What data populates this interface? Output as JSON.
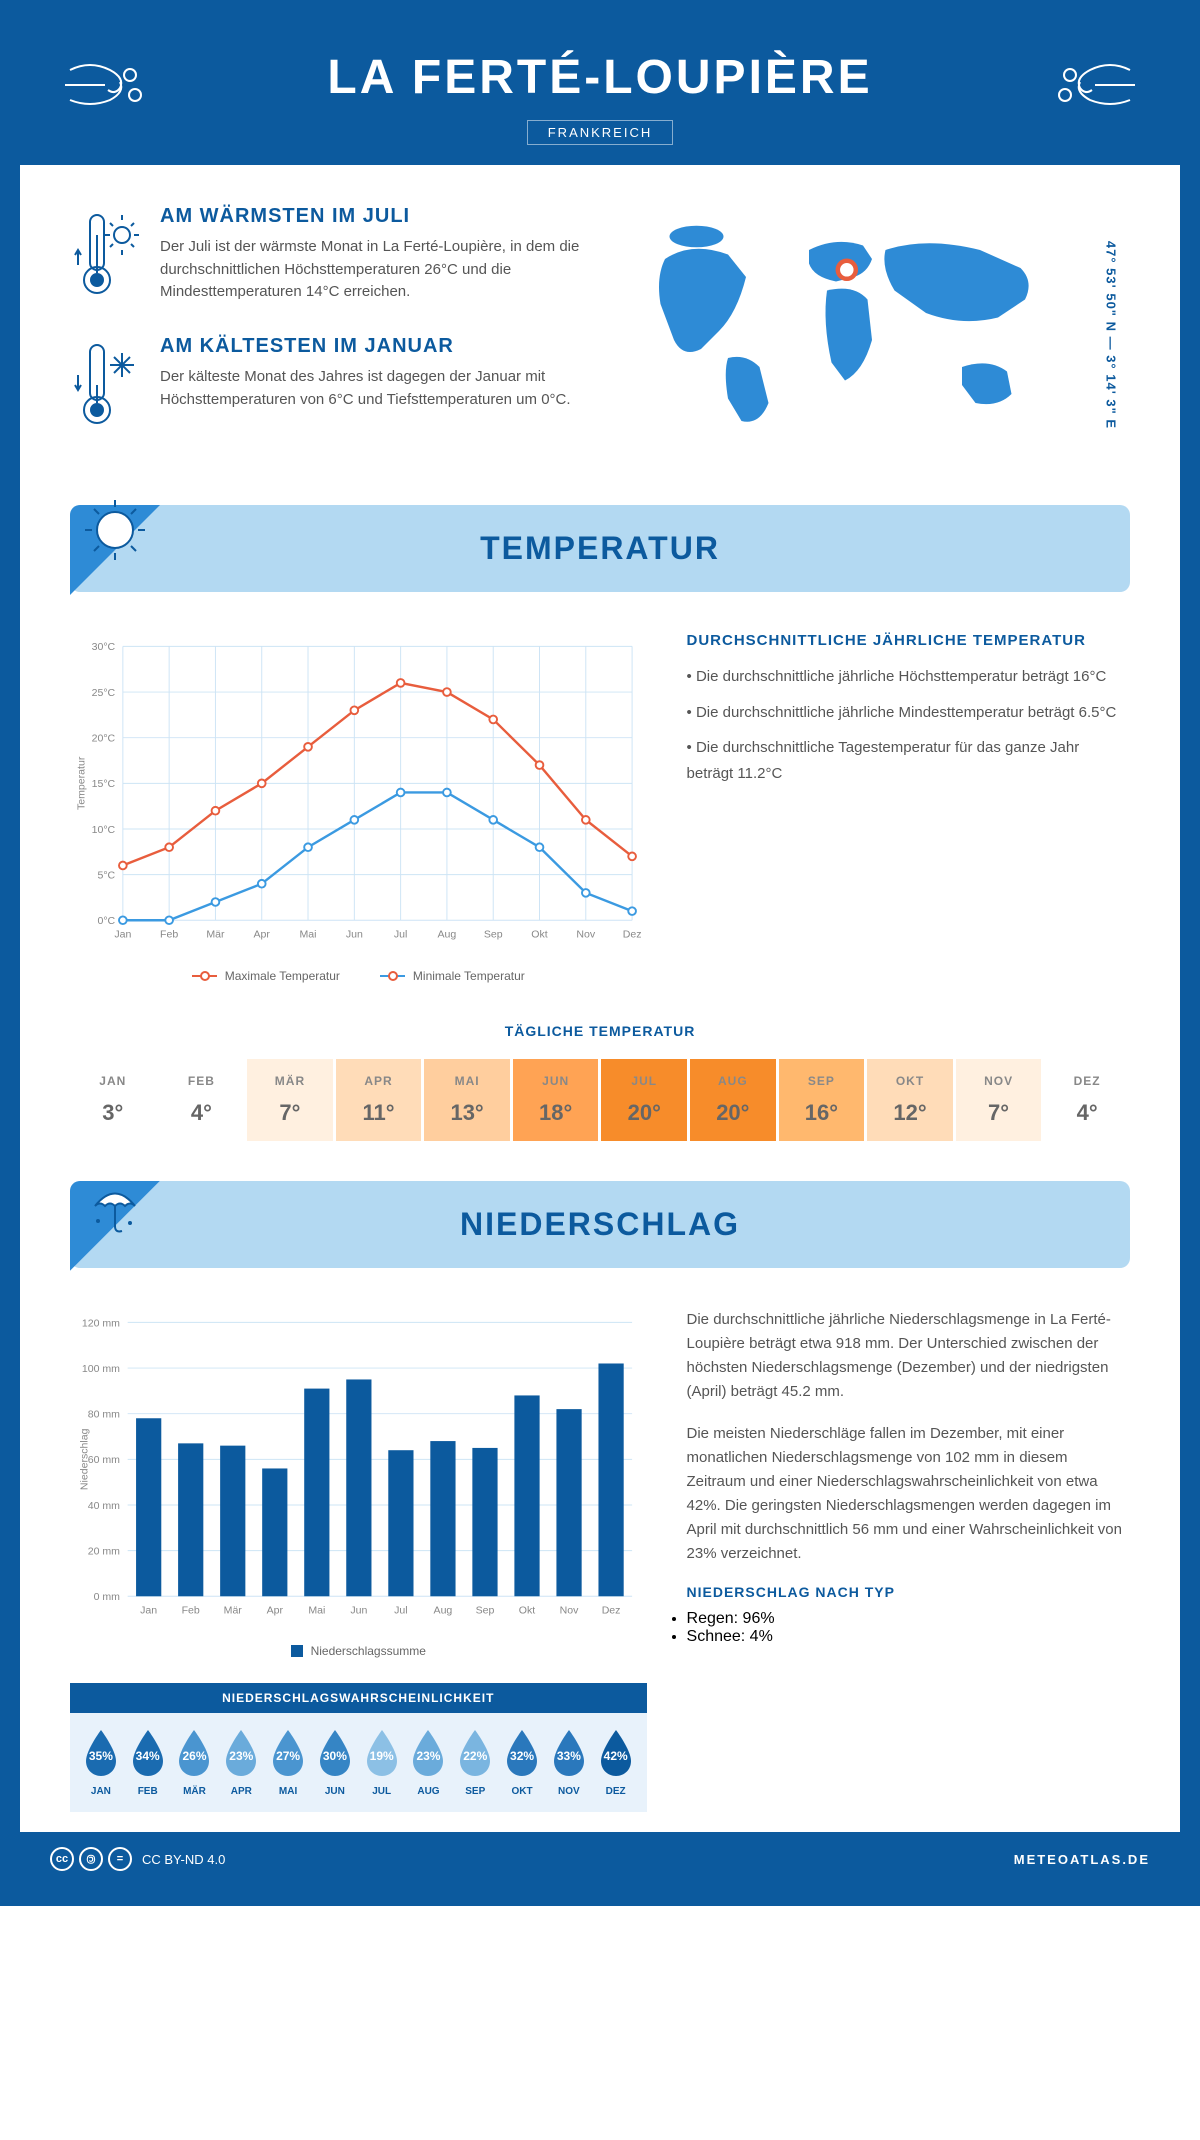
{
  "header": {
    "title": "LA FERTÉ-LOUPIÈRE",
    "country": "FRANKREICH"
  },
  "coords": "47° 53' 50\" N — 3° 14' 3\" E",
  "facts": {
    "warm": {
      "title": "AM WÄRMSTEN IM JULI",
      "text": "Der Juli ist der wärmste Monat in La Ferté-Loupière, in dem die durchschnittlichen Höchsttemperaturen 26°C und die Mindesttemperaturen 14°C erreichen."
    },
    "cold": {
      "title": "AM KÄLTESTEN IM JANUAR",
      "text": "Der kälteste Monat des Jahres ist dagegen der Januar mit Höchsttemperaturen von 6°C und Tiefsttemperaturen um 0°C."
    }
  },
  "temp_section": {
    "title": "TEMPERATUR",
    "chart": {
      "months": [
        "Jan",
        "Feb",
        "Mär",
        "Apr",
        "Mai",
        "Jun",
        "Jul",
        "Aug",
        "Sep",
        "Okt",
        "Nov",
        "Dez"
      ],
      "max": [
        6,
        8,
        12,
        15,
        19,
        23,
        26,
        25,
        22,
        17,
        11,
        7
      ],
      "min": [
        0,
        0,
        2,
        4,
        8,
        11,
        14,
        14,
        11,
        8,
        3,
        1
      ],
      "ylim": [
        0,
        30
      ],
      "ytick": 5,
      "max_color": "#e85d3d",
      "min_color": "#3b9ae1",
      "grid_color": "#cde4f5",
      "ylabel": "Temperatur",
      "legend_max": "Maximale Temperatur",
      "legend_min": "Minimale Temperatur"
    },
    "info": {
      "title": "DURCHSCHNITTLICHE JÄHRLICHE TEMPERATUR",
      "items": [
        "Die durchschnittliche jährliche Höchsttemperatur beträgt 16°C",
        "Die durchschnittliche jährliche Mindesttemperatur beträgt 6.5°C",
        "Die durchschnittliche Tagestemperatur für das ganze Jahr beträgt 11.2°C"
      ]
    },
    "daily": {
      "title": "TÄGLICHE TEMPERATUR",
      "months": [
        "JAN",
        "FEB",
        "MÄR",
        "APR",
        "MAI",
        "JUN",
        "JUL",
        "AUG",
        "SEP",
        "OKT",
        "NOV",
        "DEZ"
      ],
      "values": [
        "3°",
        "4°",
        "7°",
        "11°",
        "13°",
        "18°",
        "20°",
        "20°",
        "16°",
        "12°",
        "7°",
        "4°"
      ],
      "colors": [
        "#ffffff",
        "#ffffff",
        "#fff0e0",
        "#ffdcb8",
        "#ffce9e",
        "#ffa354",
        "#f78c2a",
        "#f78c2a",
        "#ffb86e",
        "#ffdcb8",
        "#fff0e0",
        "#ffffff"
      ]
    }
  },
  "precip_section": {
    "title": "NIEDERSCHLAG",
    "chart": {
      "months": [
        "Jan",
        "Feb",
        "Mär",
        "Apr",
        "Mai",
        "Jun",
        "Jul",
        "Aug",
        "Sep",
        "Okt",
        "Nov",
        "Dez"
      ],
      "values": [
        78,
        67,
        66,
        56,
        91,
        95,
        64,
        68,
        65,
        88,
        82,
        102
      ],
      "ylim": [
        0,
        120
      ],
      "ytick": 20,
      "bar_color": "#0c5a9e",
      "grid_color": "#cde4f5",
      "ylabel": "Niederschlag",
      "legend": "Niederschlagssumme"
    },
    "text1": "Die durchschnittliche jährliche Niederschlagsmenge in La Ferté-Loupière beträgt etwa 918 mm. Der Unterschied zwischen der höchsten Niederschlagsmenge (Dezember) und der niedrigsten (April) beträgt 45.2 mm.",
    "text2": "Die meisten Niederschläge fallen im Dezember, mit einer monatlichen Niederschlagsmenge von 102 mm in diesem Zeitraum und einer Niederschlagswahrscheinlichkeit von etwa 42%. Die geringsten Niederschlagsmengen werden dagegen im April mit durchschnittlich 56 mm und einer Wahrscheinlichkeit von 23% verzeichnet.",
    "type_title": "NIEDERSCHLAG NACH TYP",
    "types": [
      "Regen: 96%",
      "Schnee: 4%"
    ],
    "prob": {
      "title": "NIEDERSCHLAGSWAHRSCHEINLICHKEIT",
      "months": [
        "JAN",
        "FEB",
        "MÄR",
        "APR",
        "MAI",
        "JUN",
        "JUL",
        "AUG",
        "SEP",
        "OKT",
        "NOV",
        "DEZ"
      ],
      "values": [
        "35%",
        "34%",
        "26%",
        "23%",
        "27%",
        "30%",
        "19%",
        "23%",
        "22%",
        "32%",
        "33%",
        "42%"
      ],
      "colors": [
        "#1a6bb0",
        "#1a6bb0",
        "#4a95d0",
        "#6aabdb",
        "#4a95d0",
        "#3585c5",
        "#8cc0e5",
        "#6aabdb",
        "#7ab5e0",
        "#2a78bc",
        "#2a78bc",
        "#0c5a9e"
      ]
    }
  },
  "footer": {
    "license": "CC BY-ND 4.0",
    "site": "METEOATLAS.DE"
  }
}
